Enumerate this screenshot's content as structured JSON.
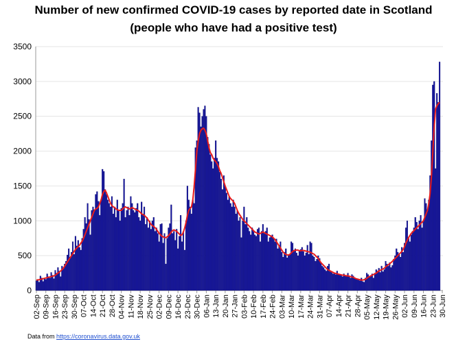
{
  "chart_data": {
    "type": "bar",
    "title": "Number of new confirmed COVID-19 cases by reported date in Scotland",
    "subtitle": "(people who have had a positive test)",
    "ylim": [
      0,
      3500
    ],
    "yticks": [
      0,
      500,
      1000,
      1500,
      2000,
      2500,
      3000,
      3500
    ],
    "grid": true,
    "categories": [
      "02-Sep",
      null,
      null,
      null,
      null,
      null,
      null,
      "09-Sep",
      null,
      null,
      null,
      null,
      null,
      null,
      "16-Sep",
      null,
      null,
      null,
      null,
      null,
      null,
      "23-Sep",
      null,
      null,
      null,
      null,
      null,
      null,
      "30-Sep",
      null,
      null,
      null,
      null,
      null,
      null,
      "07-Oct",
      null,
      null,
      null,
      null,
      null,
      null,
      "14-Oct",
      null,
      null,
      null,
      null,
      null,
      null,
      "21-Oct",
      null,
      null,
      null,
      null,
      null,
      null,
      "28-Oct",
      null,
      null,
      null,
      null,
      null,
      null,
      "04-Nov",
      null,
      null,
      null,
      null,
      null,
      null,
      "11-Nov",
      null,
      null,
      null,
      null,
      null,
      null,
      "18-Nov",
      null,
      null,
      null,
      null,
      null,
      null,
      "25-Nov",
      null,
      null,
      null,
      null,
      null,
      null,
      "02-Dec",
      null,
      null,
      null,
      null,
      null,
      null,
      "09-Dec",
      null,
      null,
      null,
      null,
      null,
      null,
      "16-Dec",
      null,
      null,
      null,
      null,
      null,
      null,
      "23-Dec",
      null,
      null,
      null,
      null,
      null,
      null,
      "30-Dec",
      null,
      null,
      null,
      null,
      null,
      null,
      "06-Jan",
      null,
      null,
      null,
      null,
      null,
      null,
      "13-Jan",
      null,
      null,
      null,
      null,
      null,
      null,
      "20-Jan",
      null,
      null,
      null,
      null,
      null,
      null,
      "27-Jan",
      null,
      null,
      null,
      null,
      null,
      null,
      "03-Feb",
      null,
      null,
      null,
      null,
      null,
      null,
      "10-Feb",
      null,
      null,
      null,
      null,
      null,
      null,
      "17-Feb",
      null,
      null,
      null,
      null,
      null,
      null,
      "24-Feb",
      null,
      null,
      null,
      null,
      null,
      null,
      "03-Mar",
      null,
      null,
      null,
      null,
      null,
      null,
      "10-Mar",
      null,
      null,
      null,
      null,
      null,
      null,
      "17-Mar",
      null,
      null,
      null,
      null,
      null,
      null,
      "24-Mar",
      null,
      null,
      null,
      null,
      null,
      null,
      "31-Mar",
      null,
      null,
      null,
      null,
      null,
      null,
      "07-Apr",
      null,
      null,
      null,
      null,
      null,
      null,
      "14-Apr",
      null,
      null,
      null,
      null,
      null,
      null,
      "21-Apr",
      null,
      null,
      null,
      null,
      null,
      null,
      "28-Apr",
      null,
      null,
      null,
      null,
      null,
      null,
      "05-May",
      null,
      null,
      null,
      null,
      null,
      null,
      "12-May",
      null,
      null,
      null,
      null,
      null,
      null,
      "19-May",
      null,
      null,
      null,
      null,
      null,
      null,
      "26-May",
      null,
      null,
      null,
      null,
      null,
      null,
      "02-Jun",
      null,
      null,
      null,
      null,
      null,
      null,
      "09-Jun",
      null,
      null,
      null,
      null,
      null,
      null,
      "16-Jun",
      null,
      null,
      null,
      null,
      null,
      null,
      "23-Jun",
      null,
      null,
      null,
      null,
      null,
      null,
      "30-Jun"
    ],
    "series": [
      {
        "type": "bar",
        "color": "#1414a0",
        "values": [
          140,
          160,
          120,
          210,
          180,
          130,
          170,
          160,
          240,
          200,
          180,
          260,
          220,
          170,
          290,
          250,
          330,
          280,
          200,
          350,
          310,
          380,
          420,
          510,
          600,
          480,
          550,
          700,
          520,
          780,
          640,
          720,
          620,
          580,
          750,
          880,
          1050,
          960,
          1250,
          1020,
          800,
          1150,
          1200,
          1160,
          1380,
          1420,
          1280,
          1080,
          1300,
          1740,
          1710,
          1450,
          1380,
          1300,
          1250,
          1200,
          1350,
          1100,
          1200,
          1050,
          1300,
          1140,
          1000,
          1180,
          1250,
          1600,
          1050,
          1150,
          1200,
          1080,
          1350,
          1250,
          1150,
          1120,
          1180,
          1250,
          1050,
          1000,
          1270,
          1100,
          1200,
          950,
          1050,
          900,
          1000,
          880,
          1000,
          1050,
          850,
          900,
          820,
          700,
          950,
          960,
          680,
          820,
          380,
          750,
          900,
          960,
          1230,
          820,
          850,
          720,
          880,
          600,
          780,
          1080,
          700,
          850,
          580,
          1000,
          1500,
          1300,
          1200,
          1100,
          1300,
          1250,
          2050,
          2150,
          2630,
          2550,
          2350,
          2500,
          2600,
          2650,
          2500,
          2200,
          2100,
          1950,
          1850,
          1750,
          1900,
          2150,
          1900,
          1850,
          1700,
          1600,
          1450,
          1650,
          1500,
          1400,
          1300,
          1350,
          1250,
          1200,
          1300,
          1200,
          1100,
          1150,
          1000,
          1050,
          760,
          1000,
          1200,
          950,
          1050,
          900,
          850,
          800,
          900,
          850,
          800,
          780,
          880,
          900,
          700,
          850,
          950,
          820,
          850,
          900,
          700,
          760,
          780,
          800,
          750,
          700,
          740,
          600,
          650,
          700,
          550,
          480,
          550,
          600,
          470,
          500,
          520,
          700,
          680,
          580,
          600,
          540,
          500,
          560,
          590,
          620,
          560,
          500,
          540,
          650,
          520,
          700,
          680,
          500,
          480,
          420,
          450,
          500,
          460,
          400,
          350,
          330,
          300,
          280,
          350,
          380,
          270,
          260,
          240,
          250,
          230,
          280,
          240,
          230,
          220,
          200,
          240,
          210,
          220,
          250,
          200,
          180,
          230,
          210,
          180,
          170,
          160,
          150,
          140,
          180,
          130,
          120,
          180,
          250,
          230,
          200,
          210,
          240,
          180,
          250,
          300,
          280,
          320,
          260,
          350,
          270,
          300,
          420,
          380,
          350,
          400,
          330,
          360,
          450,
          500,
          600,
          550,
          520,
          480,
          620,
          550,
          680,
          900,
          1000,
          750,
          700,
          800,
          850,
          900,
          1050,
          980,
          880,
          1000,
          1080,
          900,
          1000,
          1320,
          1250,
          1150,
          1300,
          1650,
          2150,
          2950,
          3000,
          1750,
          2830,
          2700,
          3280,
          null,
          null
        ]
      },
      {
        "type": "line",
        "color": "#e81c1c",
        "values": [
          150,
          152,
          155,
          160,
          165,
          170,
          175,
          180,
          185,
          190,
          195,
          200,
          205,
          210,
          220,
          235,
          250,
          265,
          280,
          300,
          320,
          350,
          380,
          410,
          440,
          470,
          500,
          530,
          560,
          590,
          610,
          630,
          650,
          680,
          710,
          750,
          800,
          850,
          900,
          950,
          1000,
          1050,
          1100,
          1150,
          1170,
          1180,
          1200,
          1250,
          1300,
          1380,
          1420,
          1440,
          1400,
          1350,
          1300,
          1250,
          1220,
          1200,
          1190,
          1170,
          1160,
          1150,
          1150,
          1150,
          1170,
          1190,
          1200,
          1190,
          1180,
          1170,
          1180,
          1190,
          1180,
          1170,
          1160,
          1150,
          1140,
          1120,
          1100,
          1090,
          1080,
          1060,
          1040,
          1010,
          980,
          950,
          930,
          920,
          900,
          880,
          850,
          820,
          800,
          780,
          770,
          760,
          760,
          770,
          790,
          810,
          840,
          860,
          870,
          860,
          850,
          830,
          810,
          790,
          800,
          840,
          900,
          980,
          1080,
          1150,
          1180,
          1200,
          1300,
          1500,
          1750,
          2000,
          2150,
          2250,
          2300,
          2320,
          2330,
          2300,
          2250,
          2150,
          2050,
          1980,
          1950,
          1900,
          1870,
          1850,
          1820,
          1780,
          1720,
          1680,
          1620,
          1560,
          1500,
          1450,
          1400,
          1350,
          1320,
          1300,
          1280,
          1250,
          1200,
          1150,
          1110,
          1080,
          1050,
          1020,
          1000,
          980,
          960,
          940,
          920,
          900,
          880,
          860,
          840,
          830,
          820,
          810,
          820,
          830,
          840,
          830,
          820,
          810,
          800,
          790,
          780,
          770,
          750,
          730,
          700,
          670,
          640,
          610,
          580,
          550,
          530,
          520,
          510,
          510,
          520,
          540,
          560,
          570,
          580,
          580,
          580,
          570,
          570,
          575,
          575,
          570,
          565,
          560,
          555,
          550,
          540,
          530,
          520,
          500,
          480,
          460,
          430,
          400,
          380,
          360,
          340,
          320,
          300,
          290,
          280,
          270,
          260,
          250,
          245,
          240,
          235,
          230,
          225,
          220,
          220,
          215,
          210,
          210,
          205,
          200,
          195,
          190,
          180,
          170,
          165,
          160,
          155,
          150,
          150,
          155,
          160,
          175,
          190,
          200,
          210,
          220,
          230,
          240,
          250,
          265,
          280,
          290,
          300,
          310,
          320,
          340,
          355,
          370,
          385,
          400,
          420,
          440,
          460,
          480,
          500,
          520,
          540,
          560,
          590,
          630,
          680,
          720,
          760,
          790,
          820,
          840,
          860,
          880,
          900,
          920,
          940,
          960,
          980,
          1000,
          1050,
          1100,
          1150,
          1250,
          1400,
          1650,
          2000,
          2350,
          2600,
          2650,
          2680,
          2700,
          null,
          null
        ]
      }
    ]
  },
  "footer": {
    "prefix": "Data from",
    "link": "https://coronavirus.data.gov.uk"
  }
}
